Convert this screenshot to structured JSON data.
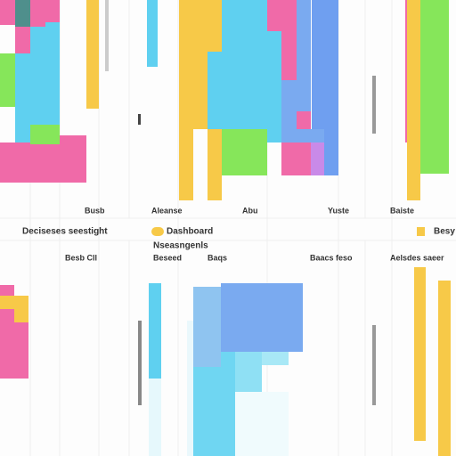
{
  "panel_labels": [
    "Busb",
    "Aleanse",
    "Abu",
    "Yuste",
    "Baiste"
  ],
  "legend": {
    "title": "Deciseses seestight",
    "item": "Dashboard",
    "subtitle": "Nseasngenls",
    "side": "Besy"
  },
  "bottom_labels": [
    "Besb Cll",
    "Beseed",
    "Baqs",
    "Baacs feso",
    "Aelsdes saeer"
  ]
}
